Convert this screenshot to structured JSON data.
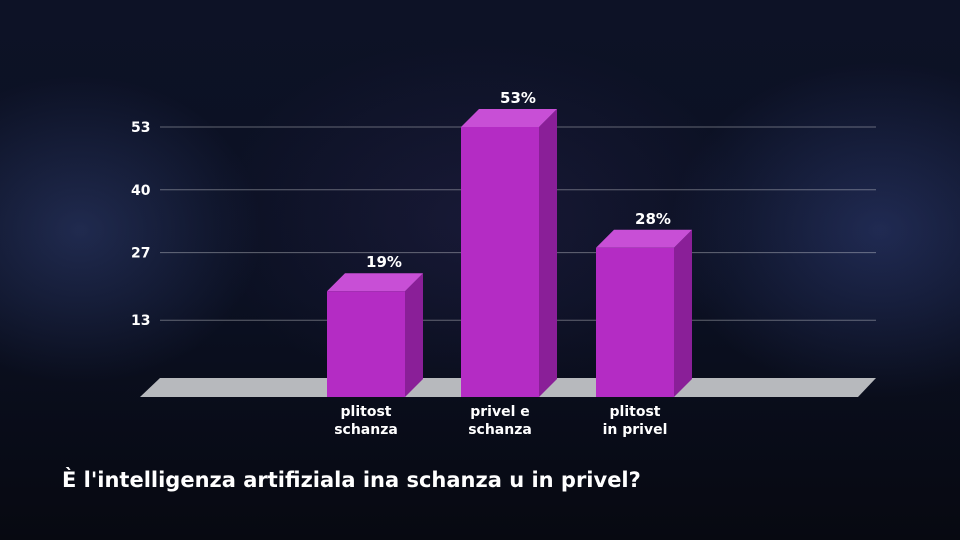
{
  "question": "È l'intelligenza artifiziala ina schanza u in privel?",
  "chart_data": {
    "type": "bar",
    "categories": [
      [
        "plitost",
        "schanza"
      ],
      [
        "privel e",
        "schanza"
      ],
      [
        "plitost",
        "in privel"
      ]
    ],
    "values": [
      19,
      53,
      28
    ],
    "value_labels": [
      "19%",
      "53%",
      "28%"
    ],
    "y_ticks": [
      13,
      27,
      40,
      53
    ],
    "ylim": [
      0,
      53
    ],
    "grid": true,
    "bar_color": "#b42cc4",
    "bar_side_color": "#8a1f98",
    "bar_top_color": "#c84fd6",
    "floor_color": "#b7b9bd"
  }
}
